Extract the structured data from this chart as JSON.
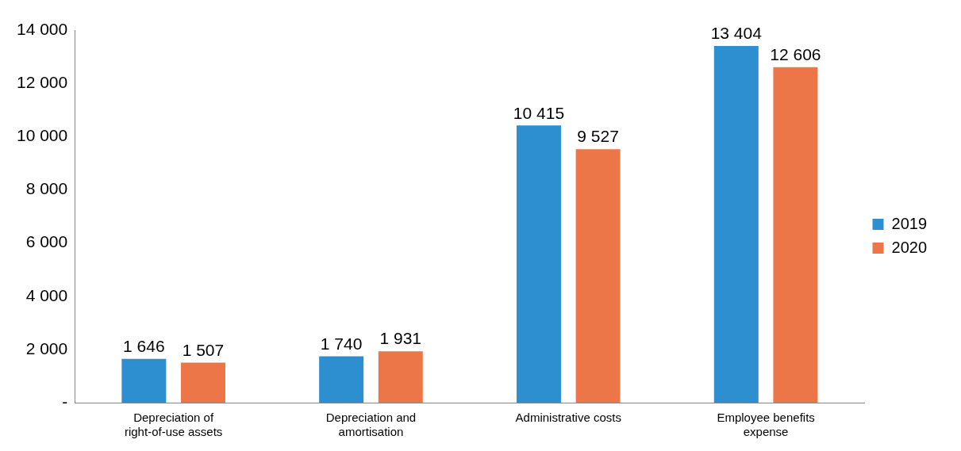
{
  "chart_data": {
    "type": "bar",
    "categories": [
      "Depreciation of right-of-use assets",
      "Depreciation and amortisation",
      "Administrative costs",
      "Employee benefits expense"
    ],
    "series": [
      {
        "name": "2019",
        "color": "#2e8fd0",
        "values": [
          1646,
          1740,
          10415,
          13404
        ],
        "value_labels": [
          "1 646",
          "1 740",
          "10 415",
          "13 404"
        ]
      },
      {
        "name": "2020",
        "color": "#ec7648",
        "values": [
          1507,
          1931,
          9527,
          12606
        ],
        "value_labels": [
          "1 507",
          "1 931",
          "9 527",
          "12 606"
        ]
      }
    ],
    "ylim": [
      0,
      14000
    ],
    "yticks": [
      {
        "value": 0,
        "label": "-"
      },
      {
        "value": 2000,
        "label": "2 000"
      },
      {
        "value": 4000,
        "label": "4 000"
      },
      {
        "value": 6000,
        "label": "6 000"
      },
      {
        "value": 8000,
        "label": "8 000"
      },
      {
        "value": 10000,
        "label": "10 000"
      },
      {
        "value": 12000,
        "label": "12 000"
      },
      {
        "value": 14000,
        "label": "14 000"
      }
    ],
    "grid": false,
    "legend": "right"
  }
}
